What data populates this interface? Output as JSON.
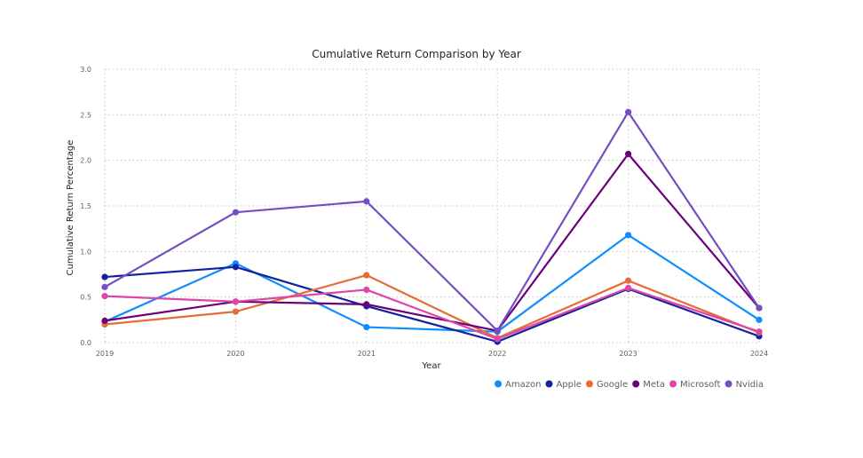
{
  "chart_data": {
    "type": "line",
    "title": "Cumulative Return Comparison by Year",
    "xlabel": "Year",
    "ylabel": "Cumulative Return Percentage",
    "x": [
      "2019",
      "2020",
      "2021",
      "2022",
      "2023",
      "2024"
    ],
    "ylim": [
      0,
      3
    ],
    "yticks": [
      "0.0",
      "0.5",
      "1.0",
      "1.5",
      "2.0",
      "2.5",
      "3.0"
    ],
    "grid": true,
    "legend_position": "bottom-right",
    "series": [
      {
        "name": "Amazon",
        "color": "#118DFF",
        "values": [
          0.23,
          0.87,
          0.17,
          0.12,
          1.18,
          0.25
        ]
      },
      {
        "name": "Apple",
        "color": "#12239E",
        "values": [
          0.72,
          0.83,
          0.4,
          0.01,
          0.59,
          0.07
        ]
      },
      {
        "name": "Google",
        "color": "#E66C37",
        "values": [
          0.2,
          0.34,
          0.74,
          0.05,
          0.68,
          0.11
        ]
      },
      {
        "name": "Meta",
        "color": "#6B007B",
        "values": [
          0.24,
          0.45,
          0.42,
          0.13,
          2.07,
          0.38
        ]
      },
      {
        "name": "Microsoft",
        "color": "#E044A7",
        "values": [
          0.51,
          0.45,
          0.58,
          0.04,
          0.6,
          0.12
        ]
      },
      {
        "name": "Nvidia",
        "color": "#744EC2",
        "values": [
          0.61,
          1.43,
          1.55,
          0.13,
          2.53,
          0.38
        ]
      }
    ]
  }
}
